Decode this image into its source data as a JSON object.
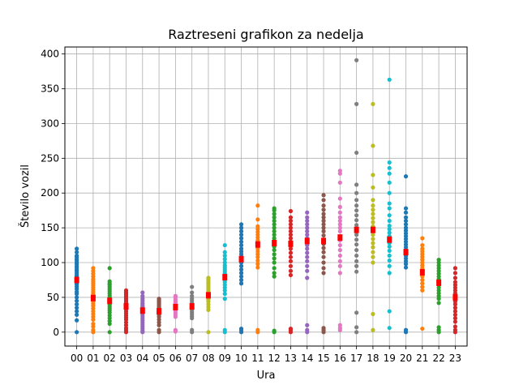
{
  "chart_data": {
    "type": "scatter",
    "title": "Raztreseni grafikon za nedelja",
    "xlabel": "Ura",
    "ylabel": "Število vozil",
    "categories": [
      "00",
      "01",
      "02",
      "03",
      "04",
      "05",
      "06",
      "07",
      "08",
      "09",
      "10",
      "11",
      "12",
      "13",
      "14",
      "15",
      "16",
      "17",
      "18",
      "19",
      "20",
      "21",
      "22",
      "23"
    ],
    "ylim": [
      -20,
      410
    ],
    "yticks": [
      0,
      50,
      100,
      150,
      200,
      250,
      300,
      350,
      400
    ],
    "grid": true,
    "colors": [
      "#1f77b4",
      "#ff7f0e",
      "#2ca02c",
      "#d62728",
      "#9467bd",
      "#8c564b",
      "#e377c2",
      "#7f7f7f",
      "#bcbd22",
      "#17becf"
    ],
    "mean_color": "#ff0000",
    "means": [
      75,
      49,
      45,
      37,
      31,
      30,
      36,
      37,
      53,
      79,
      105,
      126,
      128,
      127,
      131,
      131,
      136,
      147,
      147,
      133,
      115,
      86,
      71,
      50
    ],
    "points": [
      [
        0,
        17,
        25,
        30,
        35,
        40,
        45,
        50,
        55,
        58,
        62,
        65,
        68,
        70,
        72,
        74,
        76,
        78,
        80,
        82,
        85,
        88,
        90,
        93,
        95,
        98,
        100,
        103,
        105,
        108,
        110,
        115,
        120
      ],
      [
        0,
        3,
        8,
        12,
        18,
        22,
        26,
        30,
        34,
        38,
        41,
        44,
        47,
        49,
        51,
        53,
        55,
        58,
        61,
        64,
        67,
        70,
        73,
        76,
        80,
        84,
        88,
        92
      ],
      [
        0,
        12,
        16,
        20,
        24,
        28,
        31,
        34,
        37,
        40,
        43,
        45,
        47,
        50,
        53,
        56,
        59,
        62,
        65,
        68,
        70,
        73,
        92
      ],
      [
        0,
        3,
        6,
        10,
        14,
        18,
        21,
        24,
        27,
        30,
        33,
        36,
        38,
        40,
        42,
        44,
        46,
        48,
        50,
        52,
        54,
        56,
        58,
        60
      ],
      [
        0,
        2,
        5,
        8,
        11,
        14,
        17,
        20,
        23,
        26,
        28,
        30,
        32,
        34,
        36,
        38,
        40,
        42,
        45,
        48,
        52,
        57
      ],
      [
        0,
        3,
        10,
        14,
        18,
        22,
        25,
        28,
        30,
        32,
        34,
        36,
        38,
        40,
        42,
        44,
        46,
        48
      ],
      [
        1,
        3,
        22,
        25,
        28,
        31,
        33,
        35,
        37,
        39,
        41,
        43,
        45,
        47,
        50,
        52
      ],
      [
        0,
        3,
        20,
        23,
        26,
        29,
        32,
        35,
        38,
        40,
        42,
        45,
        48,
        52,
        57,
        65
      ],
      [
        0,
        32,
        36,
        40,
        44,
        47,
        50,
        53,
        56,
        58,
        61,
        64,
        67,
        70,
        73,
        76,
        78
      ],
      [
        0,
        3,
        48,
        55,
        60,
        64,
        68,
        72,
        75,
        78,
        81,
        84,
        87,
        90,
        93,
        96,
        100,
        105,
        110,
        115,
        125
      ],
      [
        0,
        3,
        5,
        70,
        75,
        80,
        85,
        90,
        95,
        100,
        104,
        108,
        112,
        116,
        120,
        125,
        130,
        135,
        140,
        145,
        150,
        155
      ],
      [
        0,
        3,
        93,
        98,
        103,
        108,
        112,
        116,
        120,
        124,
        128,
        132,
        136,
        140,
        144,
        148,
        152,
        162,
        182
      ],
      [
        0,
        2,
        80,
        85,
        92,
        100,
        106,
        112,
        118,
        123,
        127,
        131,
        135,
        140,
        145,
        150,
        155,
        160,
        165,
        170,
        175,
        178
      ],
      [
        0,
        3,
        5,
        82,
        88,
        95,
        102,
        108,
        114,
        120,
        125,
        130,
        135,
        140,
        145,
        150,
        155,
        160,
        165,
        174
      ],
      [
        0,
        3,
        10,
        78,
        88,
        95,
        102,
        108,
        114,
        120,
        125,
        130,
        135,
        140,
        145,
        150,
        155,
        160,
        165,
        172
      ],
      [
        0,
        3,
        6,
        85,
        92,
        100,
        108,
        115,
        121,
        127,
        133,
        139,
        145,
        150,
        155,
        160,
        165,
        170,
        176,
        182,
        190,
        197
      ],
      [
        3,
        6,
        10,
        85,
        95,
        102,
        110,
        118,
        125,
        132,
        138,
        145,
        150,
        155,
        160,
        165,
        172,
        180,
        192,
        215,
        228,
        232
      ],
      [
        0,
        7,
        28,
        87,
        95,
        102,
        110,
        118,
        126,
        133,
        140,
        147,
        154,
        161,
        168,
        175,
        182,
        190,
        200,
        212,
        258,
        328,
        391
      ],
      [
        3,
        26,
        100,
        108,
        115,
        122,
        128,
        134,
        140,
        146,
        152,
        158,
        164,
        170,
        176,
        182,
        190,
        208,
        226,
        268,
        328
      ],
      [
        6,
        30,
        85,
        95,
        103,
        110,
        117,
        123,
        128,
        133,
        138,
        143,
        148,
        153,
        160,
        168,
        178,
        185,
        200,
        215,
        228,
        236,
        244,
        363
      ],
      [
        0,
        3,
        93,
        98,
        102,
        106,
        110,
        114,
        118,
        122,
        126,
        130,
        134,
        138,
        142,
        146,
        150,
        155,
        160,
        165,
        172,
        178,
        224
      ],
      [
        5,
        60,
        65,
        70,
        75,
        80,
        84,
        88,
        92,
        96,
        100,
        104,
        108,
        112,
        116,
        120,
        125,
        135
      ],
      [
        0,
        3,
        7,
        42,
        48,
        52,
        56,
        60,
        64,
        68,
        72,
        76,
        80,
        84,
        88,
        92,
        96,
        100,
        104
      ],
      [
        0,
        3,
        8,
        15,
        20,
        25,
        30,
        35,
        40,
        44,
        48,
        52,
        56,
        60,
        64,
        68,
        72,
        78,
        85,
        92
      ]
    ]
  }
}
